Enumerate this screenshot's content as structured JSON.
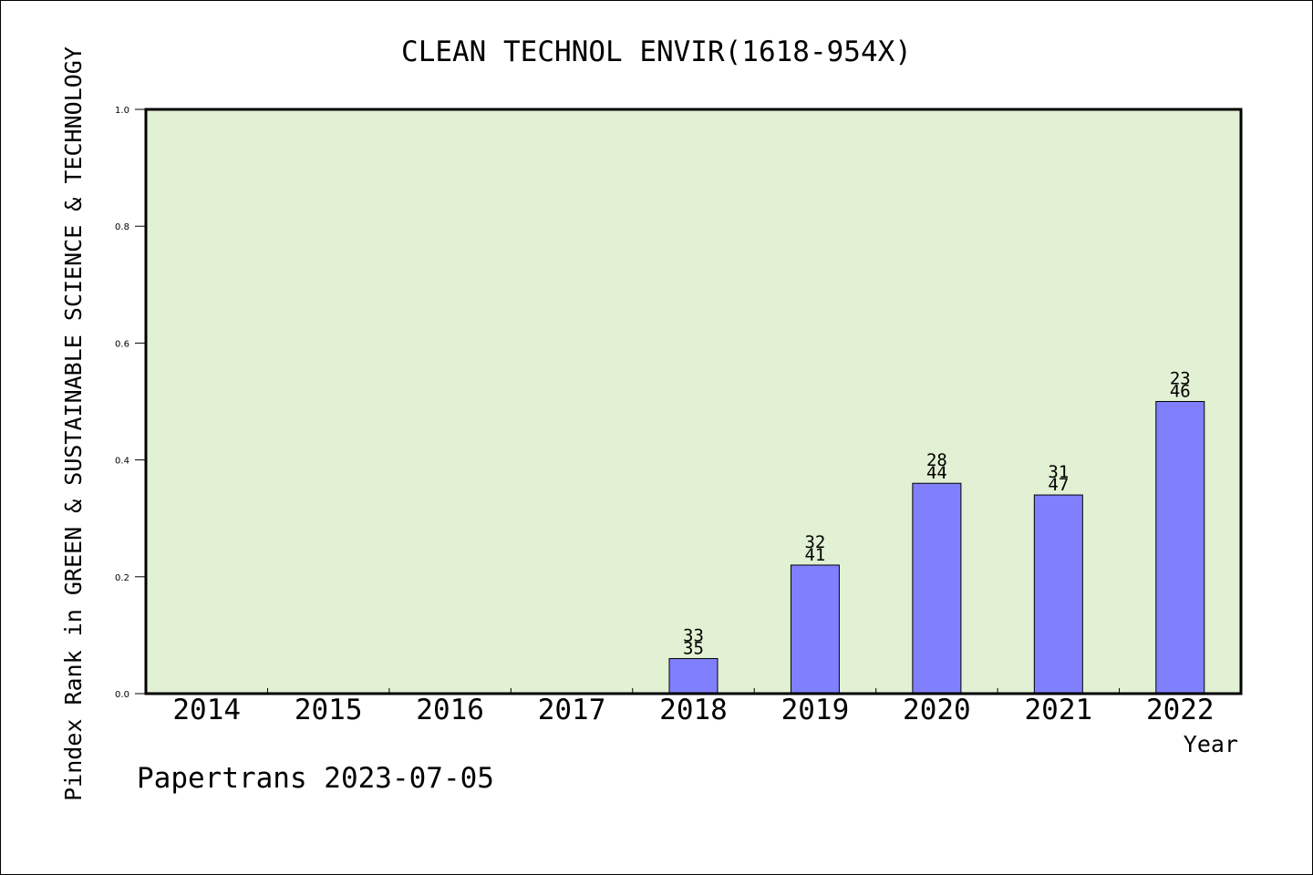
{
  "chart_data": {
    "type": "bar",
    "title": "CLEAN TECHNOL ENVIR(1618-954X)",
    "xlabel": "Year",
    "ylabel": "Pindex Rank in GREEN & SUSTAINABLE SCIENCE & TECHNOLOGY",
    "categories": [
      "2014",
      "2015",
      "2016",
      "2017",
      "2018",
      "2019",
      "2020",
      "2021",
      "2022"
    ],
    "values": [
      null,
      null,
      null,
      null,
      0.06,
      0.22,
      0.36,
      0.34,
      0.5
    ],
    "labels_top": [
      "",
      "",
      "",
      "",
      "33",
      "32",
      "28",
      "31",
      "23"
    ],
    "labels_bottom": [
      "",
      "",
      "",
      "",
      "35",
      "41",
      "44",
      "47",
      "46"
    ],
    "ylim": [
      0,
      1.0
    ],
    "yticks": [
      "0.0",
      "0.2",
      "0.4",
      "0.6",
      "0.8",
      "1.0"
    ],
    "grid": false,
    "colors": {
      "plot_background": "#e2f0d4",
      "bar_fill": "#8080ff",
      "bar_stroke": "#000000"
    }
  },
  "footer": {
    "credit": "Papertrans 2023-07-05"
  }
}
